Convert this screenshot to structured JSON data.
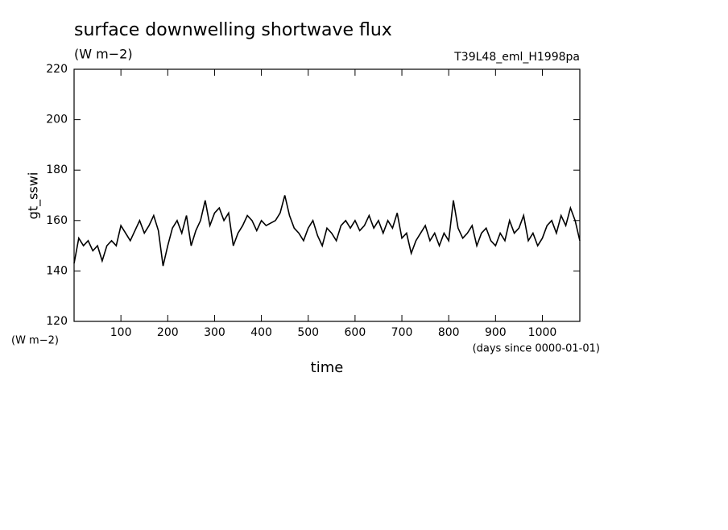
{
  "chart_data": {
    "type": "line",
    "title": "surface downwelling shortwave flux",
    "subtitle": "(W m−2)",
    "run_label": "T39L48_eml_H1998pa",
    "ylabel": "gt_sswi",
    "ylabel_unit": "(W m−2)",
    "xlabel": "time",
    "xlabel_unit": "(days since 0000-01-01)",
    "xlim": [
      0,
      1080
    ],
    "xticks": [
      100,
      200,
      300,
      400,
      500,
      600,
      700,
      800,
      900,
      1000
    ],
    "ylim": [
      120,
      220
    ],
    "yticks": [
      120,
      140,
      160,
      180,
      200,
      220
    ],
    "x": [
      0,
      10,
      20,
      30,
      40,
      50,
      60,
      70,
      80,
      90,
      100,
      110,
      120,
      130,
      140,
      150,
      160,
      170,
      180,
      190,
      200,
      210,
      220,
      230,
      240,
      250,
      260,
      270,
      280,
      290,
      300,
      310,
      320,
      330,
      340,
      350,
      360,
      370,
      380,
      390,
      400,
      410,
      420,
      430,
      440,
      450,
      460,
      470,
      480,
      490,
      500,
      510,
      520,
      530,
      540,
      550,
      560,
      570,
      580,
      590,
      600,
      610,
      620,
      630,
      640,
      650,
      660,
      670,
      680,
      690,
      700,
      710,
      720,
      730,
      740,
      750,
      760,
      770,
      780,
      790,
      800,
      810,
      820,
      830,
      840,
      850,
      860,
      870,
      880,
      890,
      900,
      910,
      920,
      930,
      940,
      950,
      960,
      970,
      980,
      990,
      1000,
      1010,
      1020,
      1030,
      1040,
      1050,
      1060,
      1070,
      1080
    ],
    "series": [
      {
        "color": "#000000",
        "values": [
          143,
          153,
          150,
          152,
          148,
          150,
          144,
          150,
          152,
          150,
          158,
          155,
          152,
          156,
          160,
          155,
          158,
          162,
          156,
          142,
          150,
          157,
          160,
          155,
          162,
          150,
          156,
          160,
          168,
          158,
          163,
          165,
          160,
          163,
          150,
          155,
          158,
          162,
          160,
          156,
          160,
          158,
          159,
          160,
          163,
          170,
          162,
          157,
          155,
          152,
          157,
          160,
          154,
          150,
          157,
          155,
          152,
          158,
          160,
          157,
          160,
          156,
          158,
          162,
          157,
          160,
          155,
          160,
          157,
          163,
          153,
          155,
          147,
          152,
          155,
          158,
          152,
          155,
          150,
          155,
          152,
          168,
          157,
          153,
          155,
          158,
          150,
          155,
          157,
          152,
          150,
          155,
          152,
          160,
          155,
          157,
          162,
          152,
          155,
          150,
          153,
          158,
          160,
          155,
          162,
          158,
          165,
          160,
          152
        ]
      }
    ]
  }
}
